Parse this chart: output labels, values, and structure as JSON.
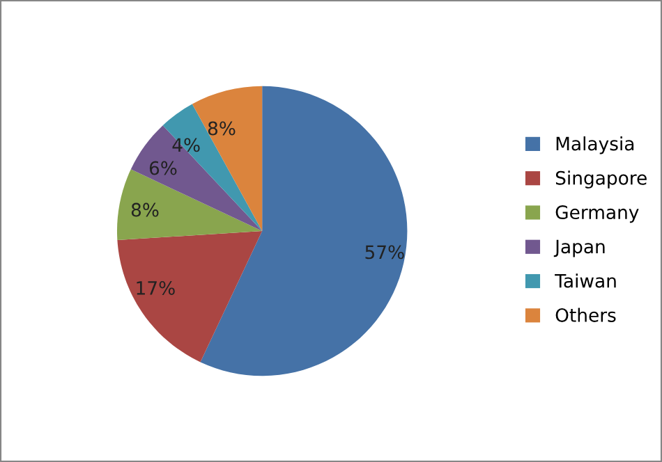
{
  "chart_data": {
    "type": "pie",
    "categories": [
      "Malaysia",
      "Singapore",
      "Germany",
      "Japan",
      "Taiwan",
      "Others"
    ],
    "values": [
      57,
      17,
      8,
      6,
      4,
      8
    ],
    "value_labels": [
      "57%",
      "17%",
      "8%",
      "6%",
      "4%",
      "8%"
    ],
    "colors": [
      "#4572a7",
      "#aa4643",
      "#89a54e",
      "#71588f",
      "#4198af",
      "#db843d"
    ],
    "legend": "right"
  }
}
